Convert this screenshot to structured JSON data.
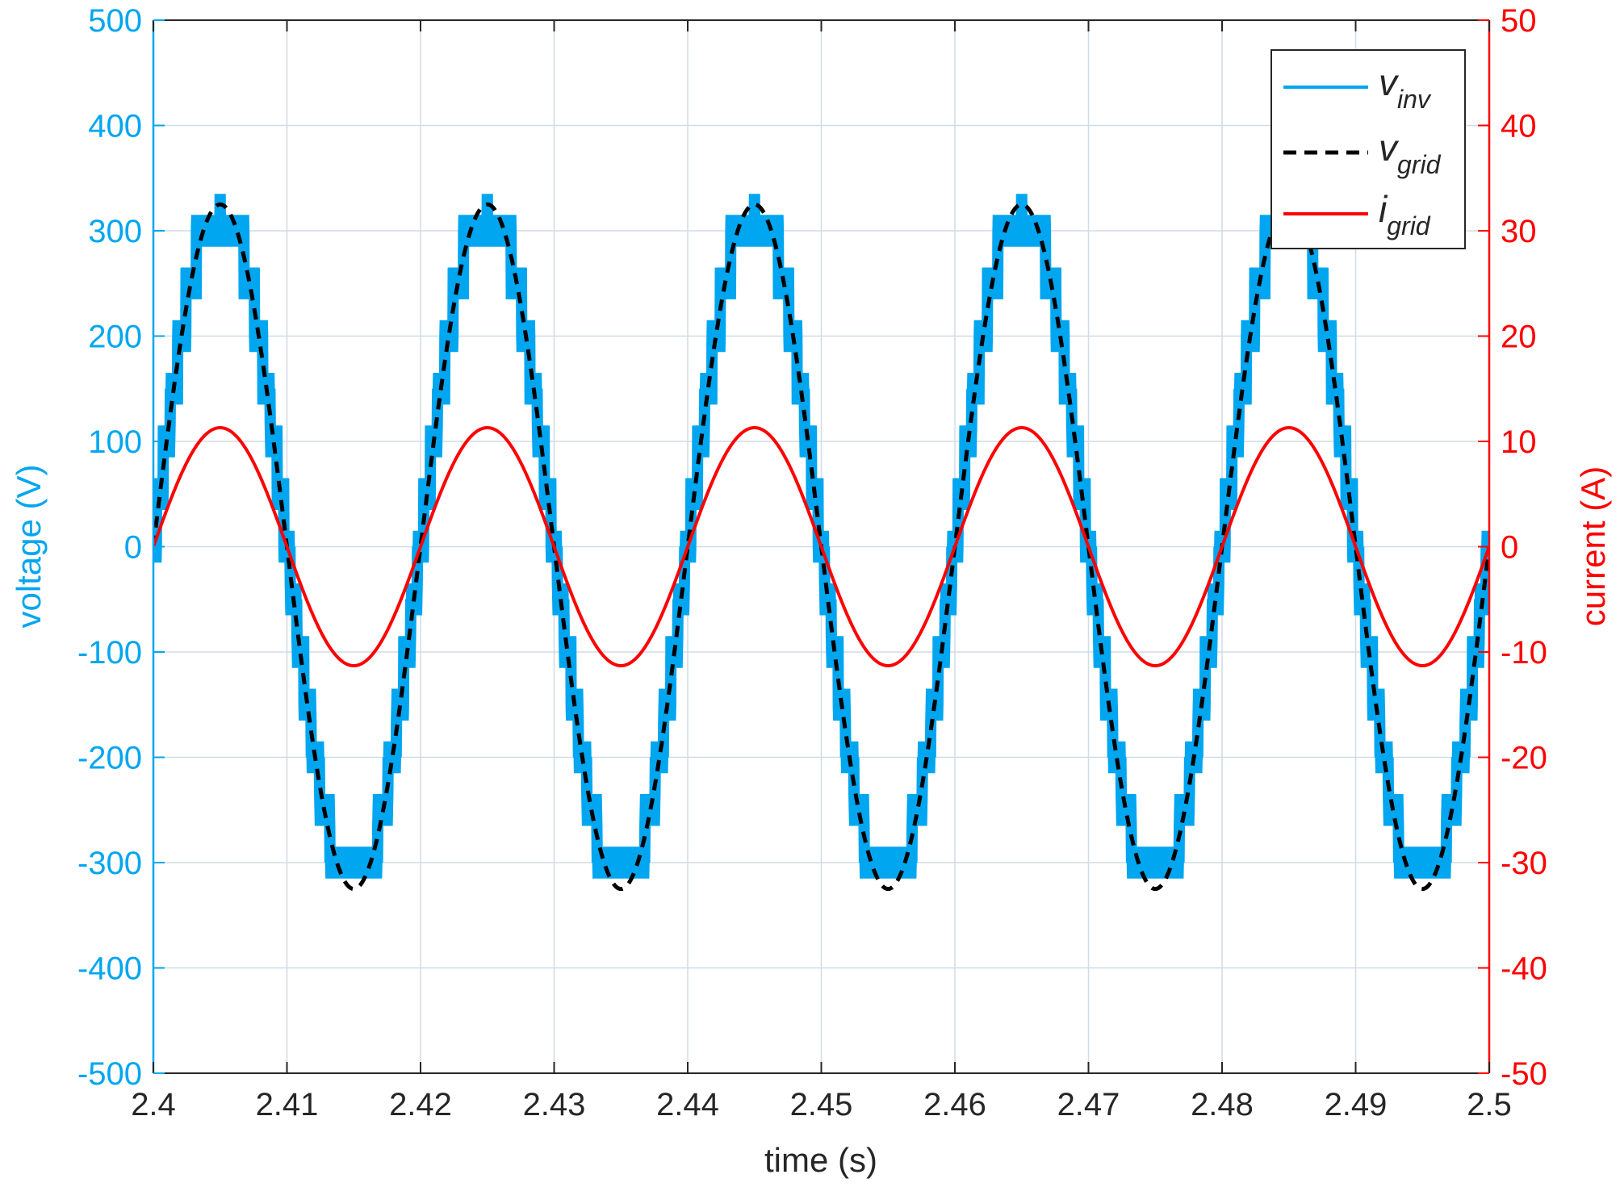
{
  "chart_data": {
    "type": "line",
    "title": "",
    "xlabel": "time (s)",
    "ylabel_left": "voltage (V)",
    "ylabel_right": "current (A)",
    "xlim": [
      2.4,
      2.5
    ],
    "ylim_left": [
      -500,
      500
    ],
    "ylim_right": [
      -50,
      50
    ],
    "x_ticks": [
      "2.4",
      "2.41",
      "2.42",
      "2.43",
      "2.44",
      "2.45",
      "2.46",
      "2.47",
      "2.48",
      "2.49",
      "2.5"
    ],
    "y_left_ticks": [
      "500",
      "400",
      "300",
      "200",
      "100",
      "0",
      "-100",
      "-200",
      "-300",
      "-400",
      "-500"
    ],
    "y_right_ticks": [
      "50",
      "40",
      "30",
      "20",
      "10",
      "0",
      "-10",
      "-20",
      "-30",
      "-40",
      "-50"
    ],
    "grid": true,
    "legend_position": "top-right",
    "grid_frequency_hz": 50,
    "series": [
      {
        "name": "v",
        "subscript": "inv",
        "axis": "left",
        "color": "#00a6f0",
        "style": "solid",
        "description": "multilevel staircase with PWM ripple",
        "amplitude": 325,
        "step_volts": 50,
        "ripple": 15
      },
      {
        "name": "v",
        "subscript": "grid",
        "axis": "left",
        "color": "#000000",
        "style": "dashed",
        "amplitude": 325
      },
      {
        "name": "i",
        "subscript": "grid",
        "axis": "right",
        "color": "#ff0000",
        "style": "solid",
        "amplitude": 11.3
      }
    ]
  },
  "colors": {
    "left_axis": "#00a6f0",
    "right_axis": "#ff0000",
    "grid": "#d0dce6"
  }
}
